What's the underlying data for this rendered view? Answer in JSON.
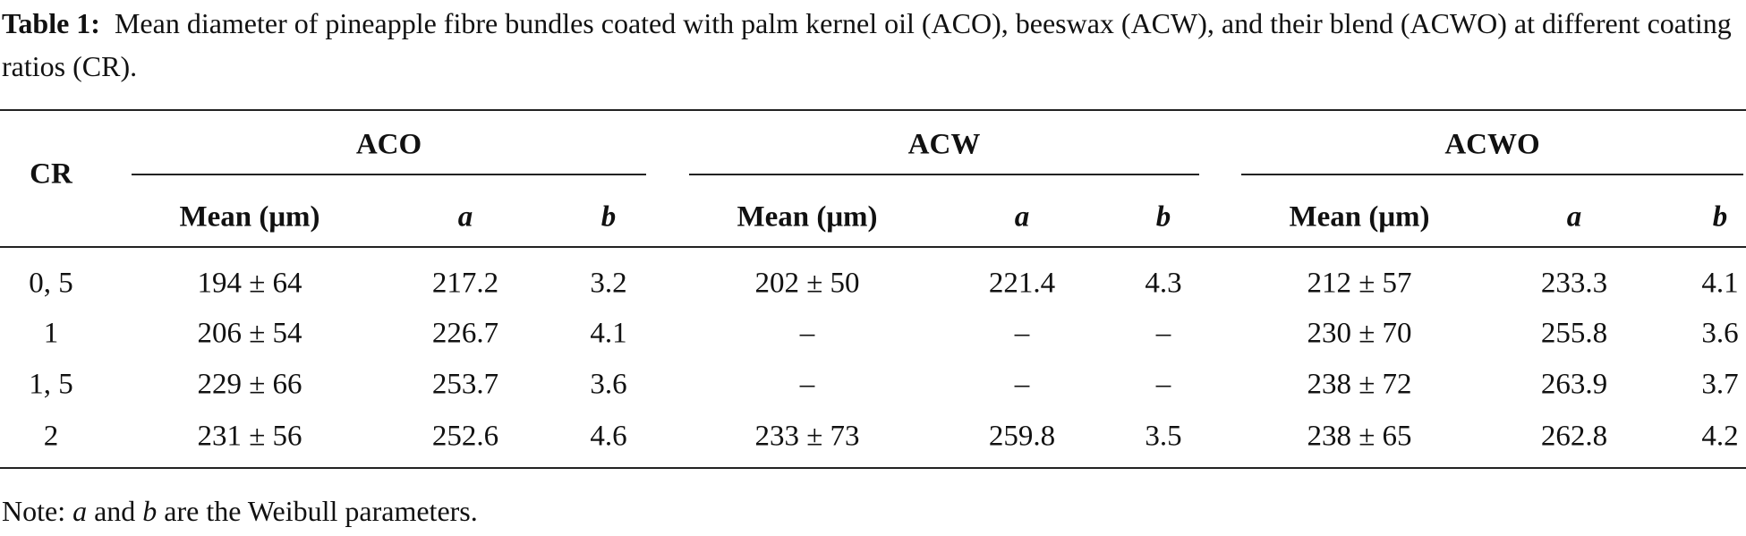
{
  "caption": {
    "label": "Table 1:",
    "text": "Mean diameter of pineapple fibre bundles coated with palm kernel oil (ACO), beeswax (ACW), and their blend (ACWO) at different coating ratios (CR)."
  },
  "table": {
    "row_header": "CR",
    "groups": [
      {
        "name": "ACO",
        "columns": [
          "Mean (μm)",
          "a",
          "b"
        ]
      },
      {
        "name": "ACW",
        "columns": [
          "Mean (μm)",
          "a",
          "b"
        ]
      },
      {
        "name": "ACWO",
        "columns": [
          "Mean (μm)",
          "a",
          "b"
        ]
      }
    ],
    "rows": [
      [
        "0, 5",
        "194 ± 64",
        "217.2",
        "3.2",
        "202 ± 50",
        "221.4",
        "4.3",
        "212 ± 57",
        "233.3",
        "4.1"
      ],
      [
        "1",
        "206 ± 54",
        "226.7",
        "4.1",
        "–",
        "–",
        "–",
        "230 ± 70",
        "255.8",
        "3.6"
      ],
      [
        "1, 5",
        "229 ± 66",
        "253.7",
        "3.6",
        "–",
        "–",
        "–",
        "238 ± 72",
        "263.9",
        "3.7"
      ],
      [
        "2",
        "231 ± 56",
        "252.6",
        "4.6",
        "233 ± 73",
        "259.8",
        "3.5",
        "238 ± 65",
        "262.8",
        "4.2"
      ]
    ]
  },
  "note": [
    "Note: ",
    "a",
    " and ",
    "b",
    " are the Weibull parameters."
  ]
}
